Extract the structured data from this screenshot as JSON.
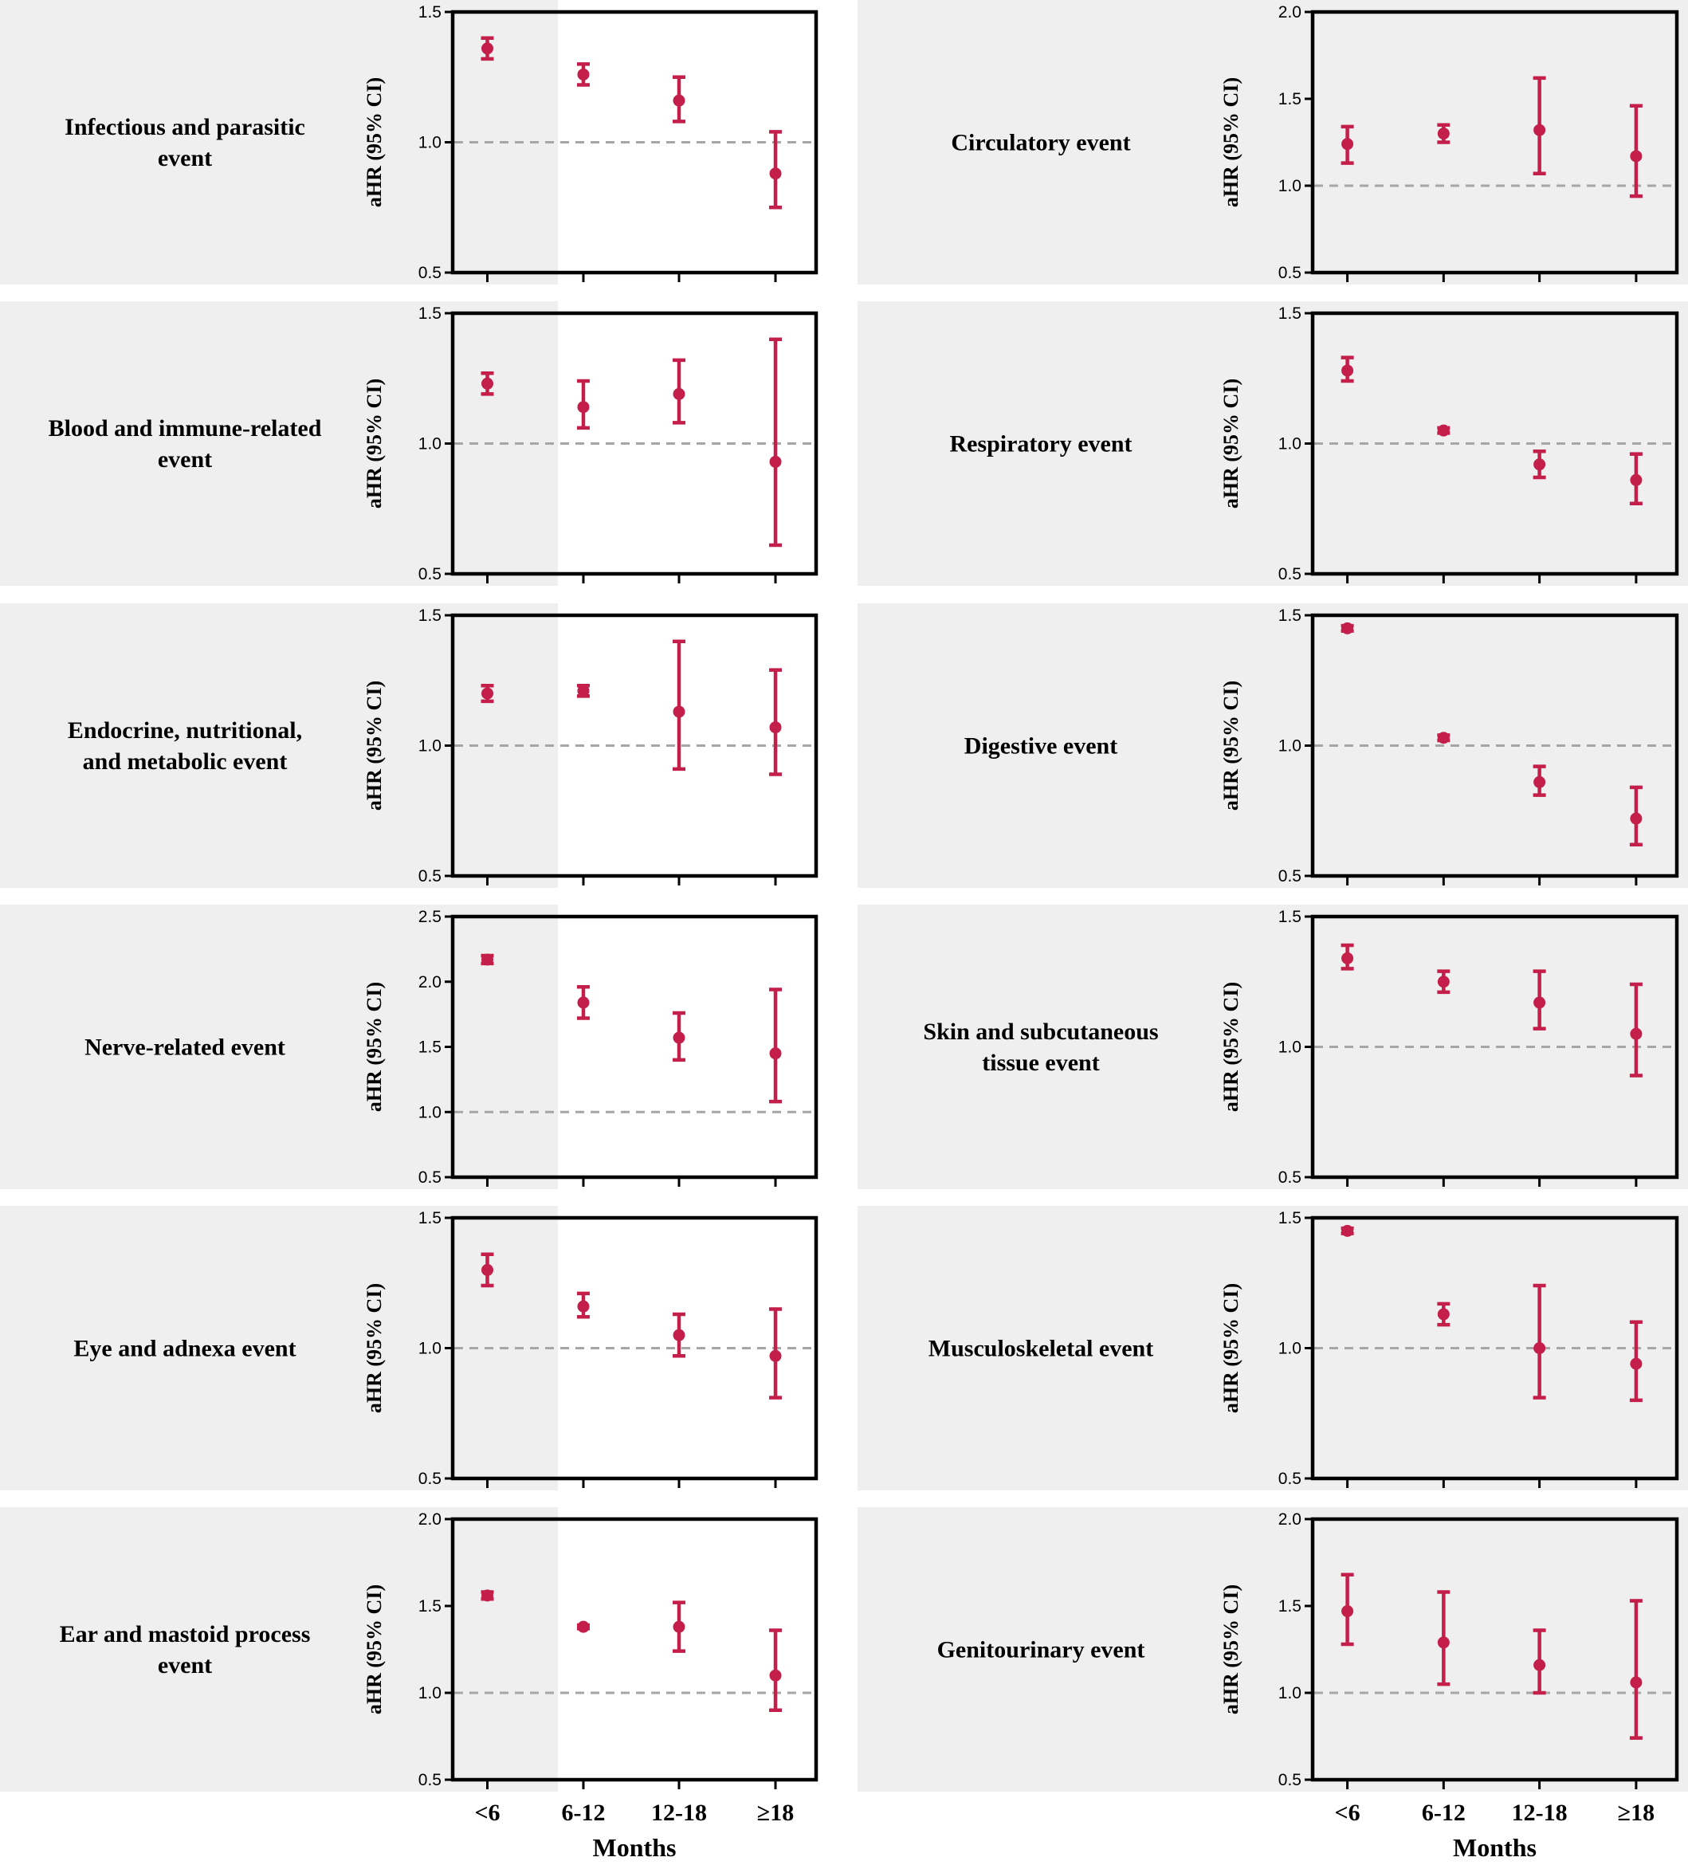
{
  "figure": {
    "colors": {
      "point": "#c41e4a",
      "panel_background": "#efefef",
      "reference_line": "#a6a6a6",
      "frame": "#000000"
    },
    "x_title": "Months"
  },
  "chart_data": [
    {
      "type": "scatter",
      "title_lines": [
        "Infectious and parasitic",
        "event"
      ],
      "ylabel": "aHR (95% CI)",
      "ylim": [
        0.5,
        1.5
      ],
      "yticks": [
        "0.5",
        "1.0",
        "1.5"
      ],
      "reference_y": 1.0,
      "categories": [
        "<6",
        "6-12",
        "12-18",
        "≥18"
      ],
      "points": [
        {
          "x": "<6",
          "est": 1.36,
          "lo": 1.32,
          "hi": 1.4
        },
        {
          "x": "6-12",
          "est": 1.26,
          "lo": 1.22,
          "hi": 1.3
        },
        {
          "x": "12-18",
          "est": 1.16,
          "lo": 1.08,
          "hi": 1.25
        },
        {
          "x": "≥18",
          "est": 0.88,
          "lo": 0.75,
          "hi": 1.04
        }
      ]
    },
    {
      "type": "scatter",
      "title_lines": [
        "Circulatory event"
      ],
      "ylabel": "aHR (95% CI)",
      "ylim": [
        0.5,
        2.0
      ],
      "yticks": [
        "0.5",
        "1.0",
        "1.5",
        "2.0"
      ],
      "reference_y": 1.0,
      "categories": [
        "<6",
        "6-12",
        "12-18",
        "≥18"
      ],
      "points": [
        {
          "x": "<6",
          "est": 1.24,
          "lo": 1.13,
          "hi": 1.34
        },
        {
          "x": "6-12",
          "est": 1.3,
          "lo": 1.25,
          "hi": 1.35
        },
        {
          "x": "12-18",
          "est": 1.32,
          "lo": 1.07,
          "hi": 1.62
        },
        {
          "x": "≥18",
          "est": 1.17,
          "lo": 0.94,
          "hi": 1.46
        }
      ]
    },
    {
      "type": "scatter",
      "title_lines": [
        "Blood and immune-related",
        "event"
      ],
      "ylabel": "aHR (95% CI)",
      "ylim": [
        0.5,
        1.5
      ],
      "yticks": [
        "0.5",
        "1.0",
        "1.5"
      ],
      "reference_y": 1.0,
      "categories": [
        "<6",
        "6-12",
        "12-18",
        "≥18"
      ],
      "points": [
        {
          "x": "<6",
          "est": 1.23,
          "lo": 1.19,
          "hi": 1.27
        },
        {
          "x": "6-12",
          "est": 1.14,
          "lo": 1.06,
          "hi": 1.24
        },
        {
          "x": "12-18",
          "est": 1.19,
          "lo": 1.08,
          "hi": 1.32
        },
        {
          "x": "≥18",
          "est": 0.93,
          "lo": 0.61,
          "hi": 1.4
        }
      ]
    },
    {
      "type": "scatter",
      "title_lines": [
        "Respiratory event"
      ],
      "ylabel": "aHR (95% CI)",
      "ylim": [
        0.5,
        1.5
      ],
      "yticks": [
        "0.5",
        "1.0",
        "1.5"
      ],
      "reference_y": 1.0,
      "categories": [
        "<6",
        "6-12",
        "12-18",
        "≥18"
      ],
      "points": [
        {
          "x": "<6",
          "est": 1.28,
          "lo": 1.24,
          "hi": 1.33
        },
        {
          "x": "6-12",
          "est": 1.05,
          "lo": 1.04,
          "hi": 1.06
        },
        {
          "x": "12-18",
          "est": 0.92,
          "lo": 0.87,
          "hi": 0.97
        },
        {
          "x": "≥18",
          "est": 0.86,
          "lo": 0.77,
          "hi": 0.96
        }
      ]
    },
    {
      "type": "scatter",
      "title_lines": [
        "Endocrine, nutritional,",
        "and metabolic event"
      ],
      "ylabel": "aHR (95% CI)",
      "ylim": [
        0.5,
        1.5
      ],
      "yticks": [
        "0.5",
        "1.0",
        "1.5"
      ],
      "reference_y": 1.0,
      "categories": [
        "<6",
        "6-12",
        "12-18",
        "≥18"
      ],
      "points": [
        {
          "x": "<6",
          "est": 1.2,
          "lo": 1.17,
          "hi": 1.23
        },
        {
          "x": "6-12",
          "est": 1.21,
          "lo": 1.19,
          "hi": 1.23
        },
        {
          "x": "12-18",
          "est": 1.13,
          "lo": 0.91,
          "hi": 1.4
        },
        {
          "x": "≥18",
          "est": 1.07,
          "lo": 0.89,
          "hi": 1.29
        }
      ]
    },
    {
      "type": "scatter",
      "title_lines": [
        "Digestive event"
      ],
      "ylabel": "aHR (95% CI)",
      "ylim": [
        0.5,
        1.5
      ],
      "yticks": [
        "0.5",
        "1.0",
        "1.5"
      ],
      "reference_y": 1.0,
      "categories": [
        "<6",
        "6-12",
        "12-18",
        "≥18"
      ],
      "points": [
        {
          "x": "<6",
          "est": 1.45,
          "lo": 1.44,
          "hi": 1.46
        },
        {
          "x": "6-12",
          "est": 1.03,
          "lo": 1.02,
          "hi": 1.04
        },
        {
          "x": "12-18",
          "est": 0.86,
          "lo": 0.81,
          "hi": 0.92
        },
        {
          "x": "≥18",
          "est": 0.72,
          "lo": 0.62,
          "hi": 0.84
        }
      ]
    },
    {
      "type": "scatter",
      "title_lines": [
        "Nerve-related event"
      ],
      "ylabel": "aHR (95% CI)",
      "ylim": [
        0.5,
        2.5
      ],
      "yticks": [
        "0.5",
        "1.0",
        "1.5",
        "2.0",
        "2.5"
      ],
      "reference_y": 1.0,
      "categories": [
        "<6",
        "6-12",
        "12-18",
        "≥18"
      ],
      "points": [
        {
          "x": "<6",
          "est": 2.17,
          "lo": 2.14,
          "hi": 2.2
        },
        {
          "x": "6-12",
          "est": 1.84,
          "lo": 1.72,
          "hi": 1.96
        },
        {
          "x": "12-18",
          "est": 1.57,
          "lo": 1.4,
          "hi": 1.76
        },
        {
          "x": "≥18",
          "est": 1.45,
          "lo": 1.08,
          "hi": 1.94
        }
      ]
    },
    {
      "type": "scatter",
      "title_lines": [
        "Skin and subcutaneous",
        "tissue event"
      ],
      "ylabel": "aHR (95% CI)",
      "ylim": [
        0.5,
        1.5
      ],
      "yticks": [
        "0.5",
        "1.0",
        "1.5"
      ],
      "reference_y": 1.0,
      "categories": [
        "<6",
        "6-12",
        "12-18",
        "≥18"
      ],
      "points": [
        {
          "x": "<6",
          "est": 1.34,
          "lo": 1.3,
          "hi": 1.39
        },
        {
          "x": "6-12",
          "est": 1.25,
          "lo": 1.21,
          "hi": 1.29
        },
        {
          "x": "12-18",
          "est": 1.17,
          "lo": 1.07,
          "hi": 1.29
        },
        {
          "x": "≥18",
          "est": 1.05,
          "lo": 0.89,
          "hi": 1.24
        }
      ]
    },
    {
      "type": "scatter",
      "title_lines": [
        "Eye and adnexa event"
      ],
      "ylabel": "aHR (95% CI)",
      "ylim": [
        0.5,
        1.5
      ],
      "yticks": [
        "0.5",
        "1.0",
        "1.5"
      ],
      "reference_y": 1.0,
      "categories": [
        "<6",
        "6-12",
        "12-18",
        "≥18"
      ],
      "points": [
        {
          "x": "<6",
          "est": 1.3,
          "lo": 1.24,
          "hi": 1.36
        },
        {
          "x": "6-12",
          "est": 1.16,
          "lo": 1.12,
          "hi": 1.21
        },
        {
          "x": "12-18",
          "est": 1.05,
          "lo": 0.97,
          "hi": 1.13
        },
        {
          "x": "≥18",
          "est": 0.97,
          "lo": 0.81,
          "hi": 1.15
        }
      ]
    },
    {
      "type": "scatter",
      "title_lines": [
        "Musculoskeletal event"
      ],
      "ylabel": "aHR (95% CI)",
      "ylim": [
        0.5,
        1.5
      ],
      "yticks": [
        "0.5",
        "1.0",
        "1.5"
      ],
      "reference_y": 1.0,
      "categories": [
        "<6",
        "6-12",
        "12-18",
        "≥18"
      ],
      "points": [
        {
          "x": "<6",
          "est": 1.45,
          "lo": 1.44,
          "hi": 1.46
        },
        {
          "x": "6-12",
          "est": 1.13,
          "lo": 1.09,
          "hi": 1.17
        },
        {
          "x": "12-18",
          "est": 1.0,
          "lo": 0.81,
          "hi": 1.24
        },
        {
          "x": "≥18",
          "est": 0.94,
          "lo": 0.8,
          "hi": 1.1
        }
      ]
    },
    {
      "type": "scatter",
      "title_lines": [
        "Ear and mastoid process",
        "event"
      ],
      "ylabel": "aHR (95% CI)",
      "ylim": [
        0.5,
        2.0
      ],
      "yticks": [
        "0.5",
        "1.0",
        "1.5",
        "2.0"
      ],
      "reference_y": 1.0,
      "categories": [
        "<6",
        "6-12",
        "12-18",
        "≥18"
      ],
      "points": [
        {
          "x": "<6",
          "est": 1.56,
          "lo": 1.54,
          "hi": 1.58
        },
        {
          "x": "6-12",
          "est": 1.38,
          "lo": 1.37,
          "hi": 1.39
        },
        {
          "x": "12-18",
          "est": 1.38,
          "lo": 1.24,
          "hi": 1.52
        },
        {
          "x": "≥18",
          "est": 1.1,
          "lo": 0.9,
          "hi": 1.36
        }
      ]
    },
    {
      "type": "scatter",
      "title_lines": [
        "Genitourinary event"
      ],
      "ylabel": "aHR (95% CI)",
      "ylim": [
        0.5,
        2.0
      ],
      "yticks": [
        "0.5",
        "1.0",
        "1.5",
        "2.0"
      ],
      "reference_y": 1.0,
      "categories": [
        "<6",
        "6-12",
        "12-18",
        "≥18"
      ],
      "points": [
        {
          "x": "<6",
          "est": 1.47,
          "lo": 1.28,
          "hi": 1.68
        },
        {
          "x": "6-12",
          "est": 1.29,
          "lo": 1.05,
          "hi": 1.58
        },
        {
          "x": "12-18",
          "est": 1.16,
          "lo": 1.0,
          "hi": 1.36
        },
        {
          "x": "≥18",
          "est": 1.06,
          "lo": 0.74,
          "hi": 1.53
        }
      ]
    }
  ]
}
